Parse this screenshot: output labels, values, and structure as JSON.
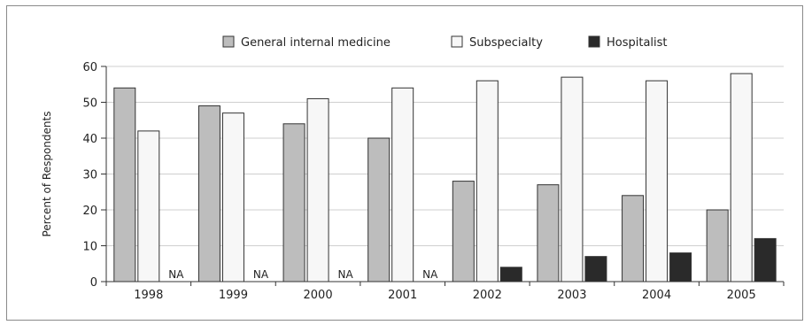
{
  "chart_data": {
    "type": "bar",
    "title": "",
    "xlabel": "",
    "ylabel": "Percent of Respondents",
    "ylim": [
      0,
      60
    ],
    "yticks": [
      0,
      10,
      20,
      30,
      40,
      50,
      60
    ],
    "grid": true,
    "legend_position": "top",
    "categories": [
      "1998",
      "1999",
      "2000",
      "2001",
      "2002",
      "2003",
      "2004",
      "2005"
    ],
    "series": [
      {
        "name": "General internal medicine",
        "color": "#bdbdbd",
        "values": [
          54,
          49,
          44,
          40,
          28,
          27,
          24,
          20
        ]
      },
      {
        "name": "Subspecialty",
        "color": "#f7f7f7",
        "values": [
          42,
          47,
          51,
          54,
          56,
          57,
          56,
          58
        ]
      },
      {
        "name": "Hospitalist",
        "color": "#2a2a2a",
        "values": [
          null,
          null,
          null,
          null,
          4,
          7,
          8,
          12
        ]
      }
    ],
    "missing_label": "NA"
  }
}
